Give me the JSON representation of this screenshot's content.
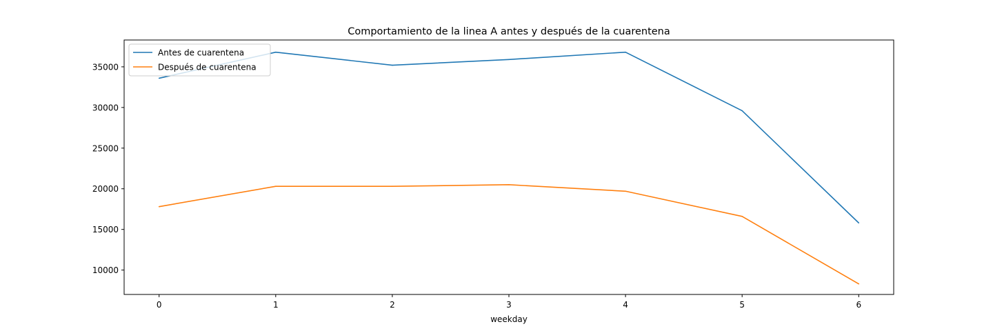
{
  "chart_data": {
    "type": "line",
    "title": "Comportamiento de la linea A antes y después de la cuarentena",
    "xlabel": "weekday",
    "ylabel": "",
    "x": [
      0,
      1,
      2,
      3,
      4,
      5,
      6
    ],
    "x_ticks": [
      "0",
      "1",
      "2",
      "3",
      "4",
      "5",
      "6"
    ],
    "y_ticks": [
      "10000",
      "15000",
      "20000",
      "25000",
      "30000",
      "35000"
    ],
    "xlim": [
      -0.3,
      6.3
    ],
    "ylim": [
      7000,
      38300
    ],
    "grid": false,
    "legend_position": "top-left",
    "series": [
      {
        "name": "Antes de cuarentena",
        "color": "#1f77b4",
        "values": [
          33600,
          36800,
          35200,
          35900,
          36800,
          29600,
          15800
        ]
      },
      {
        "name": "Después de cuarentena",
        "color": "#ff7f0e",
        "values": [
          17800,
          20300,
          20300,
          20500,
          19700,
          16600,
          8300
        ]
      }
    ]
  }
}
